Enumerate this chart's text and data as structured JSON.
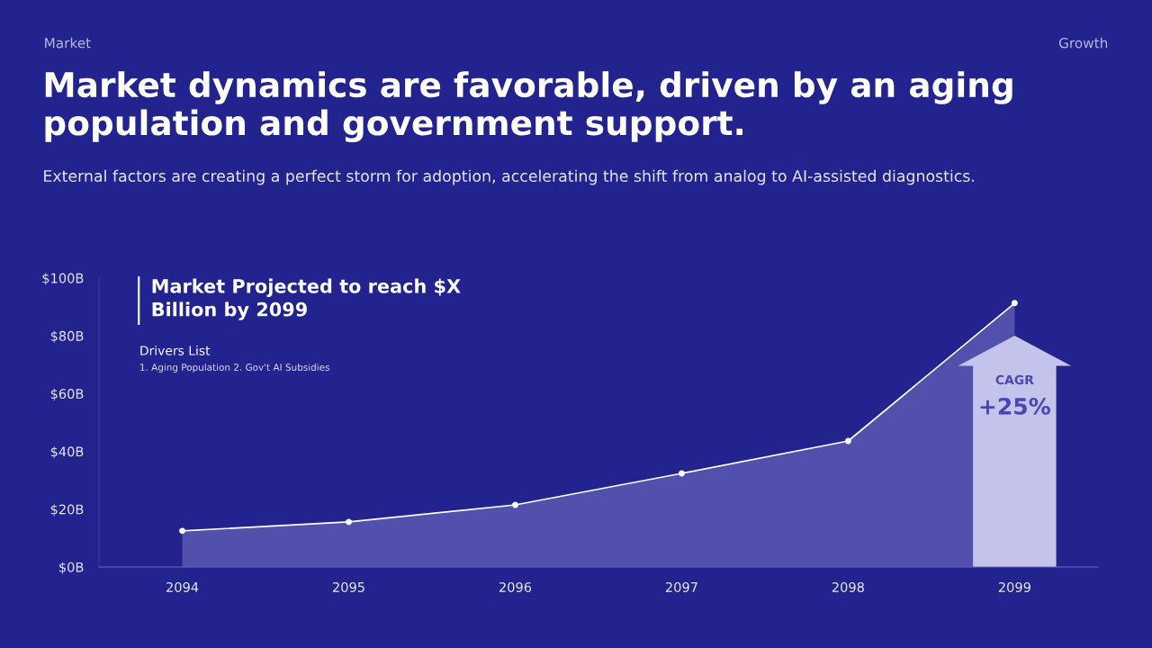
{
  "chart_data": {
    "type": "area",
    "title": "Market dynamics are favorable, driven by an aging population and government support.",
    "subtitle": "External factors are creating a perfect storm for adoption, accelerating the shift from analog to AI-assisted diagnostics.",
    "categories": [
      "2094",
      "2095",
      "2096",
      "2097",
      "2098",
      "2099"
    ],
    "series": [
      {
        "color": "#ffffff",
        "values": [
          12.5,
          15.6,
          21.5,
          32.4,
          43.6,
          91.3
        ]
      }
    ],
    "ylim": [
      0,
      100
    ],
    "yticks": [
      {
        "value": 0,
        "label": "$0B"
      },
      {
        "value": 20,
        "label": "$20B"
      },
      {
        "value": 40,
        "label": "$40B"
      },
      {
        "value": 60,
        "label": "$60B"
      },
      {
        "value": 80,
        "label": "$80B"
      },
      {
        "value": 100,
        "label": "$100B"
      }
    ],
    "grid": false,
    "marker": "circle",
    "line_style": "solid",
    "annotations": [
      "Market",
      "Growth",
      "Market Projected to reach $X\nBillion by 2099",
      "Drivers List",
      "1. Aging Population 2. Gov't AI Subsidies",
      "CAGR",
      "+25%"
    ]
  }
}
